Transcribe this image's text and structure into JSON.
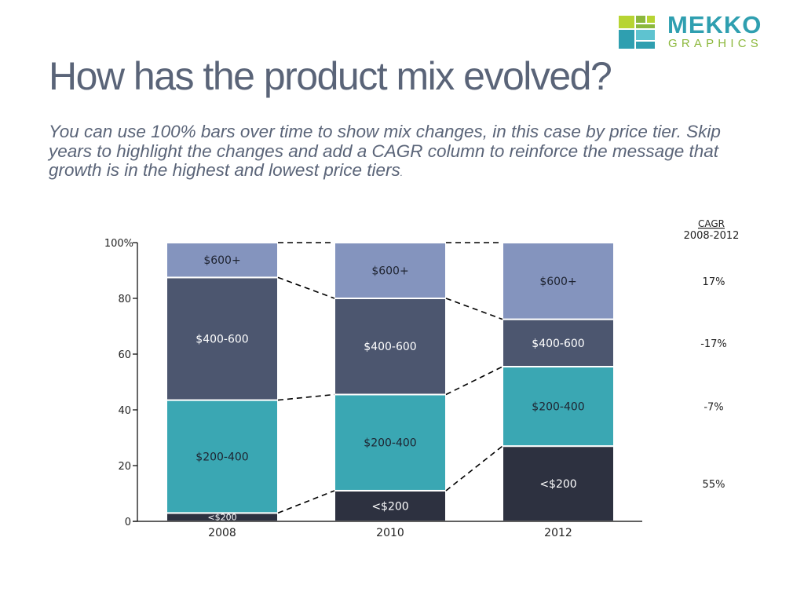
{
  "logo": {
    "word1": "MEKKO",
    "word2": "GRAPHICS",
    "colors": {
      "teal": "#2f9fb0",
      "green": "#8cb83c",
      "lime": "#b7d433"
    }
  },
  "title": "How has the product mix evolved?",
  "subtitle": "You can use 100% bars over time to show mix changes, in this case by price tier. Skip years to highlight the changes and add a CAGR column to reinforce the message that growth is in the highest and lowest price tiers",
  "subtitle_end": ".",
  "chart_data": {
    "type": "bar",
    "stacked": "100%",
    "categories": [
      "2008",
      "2010",
      "2012"
    ],
    "ylim": [
      0,
      100
    ],
    "yticks": [
      0,
      20,
      40,
      60,
      80,
      100
    ],
    "ytick_labels": [
      "0",
      "20",
      "40",
      "60",
      "80",
      "100%"
    ],
    "series": [
      {
        "name": "<$200",
        "color": "#2d3140",
        "label_color": "#ffffff",
        "values": [
          3,
          11,
          27
        ]
      },
      {
        "name": "$200-400",
        "color": "#3aa7b3",
        "label_color": "#1e2330",
        "values": [
          40.5,
          34.5,
          28.5
        ]
      },
      {
        "name": "$400-600",
        "color": "#4c566f",
        "label_color": "#ffffff",
        "values": [
          44,
          34.5,
          17
        ]
      },
      {
        "name": "$600+",
        "color": "#8494be",
        "label_color": "#1e2330",
        "values": [
          12.5,
          20,
          27.5
        ]
      }
    ],
    "connectors": "dashed",
    "cagr": {
      "header": "CAGR",
      "period": "2008-2012",
      "values": [
        "55%",
        "-7%",
        "-17%",
        "17%"
      ]
    }
  }
}
